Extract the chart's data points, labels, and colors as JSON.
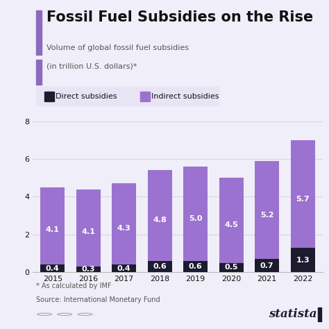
{
  "title": "Fossil Fuel Subsidies on the Rise",
  "subtitle_line1": "Volume of global fossil fuel subsidies",
  "subtitle_line2": "(in trillion U.S. dollars)*",
  "years": [
    "2015",
    "2016",
    "2017",
    "2018",
    "2019",
    "2020",
    "2021",
    "2022"
  ],
  "direct": [
    0.4,
    0.3,
    0.4,
    0.6,
    0.6,
    0.5,
    0.7,
    1.3
  ],
  "indirect": [
    4.1,
    4.1,
    4.3,
    4.8,
    5.0,
    4.5,
    5.2,
    5.7
  ],
  "direct_color": "#1c1c2e",
  "indirect_color": "#9b72cf",
  "background_color": "#f0eef8",
  "title_color": "#111111",
  "subtitle_color": "#555555",
  "label_color_white": "#ffffff",
  "ylim": [
    0,
    8.5
  ],
  "yticks": [
    0,
    2,
    4,
    6,
    8
  ],
  "footnote1": "* As calculated by IMF",
  "footnote2": "Source: International Monetary Fund",
  "legend_direct": "Direct subsidies",
  "legend_indirect": "Indirect subsidies",
  "accent_color": "#8b6abf",
  "statista_color": "#1a1a2e",
  "grid_color": "#d8d4e8",
  "title_fontsize": 15,
  "subtitle_fontsize": 8,
  "legend_fontsize": 8,
  "bar_label_fontsize": 8,
  "tick_fontsize": 8,
  "footnote_fontsize": 7
}
